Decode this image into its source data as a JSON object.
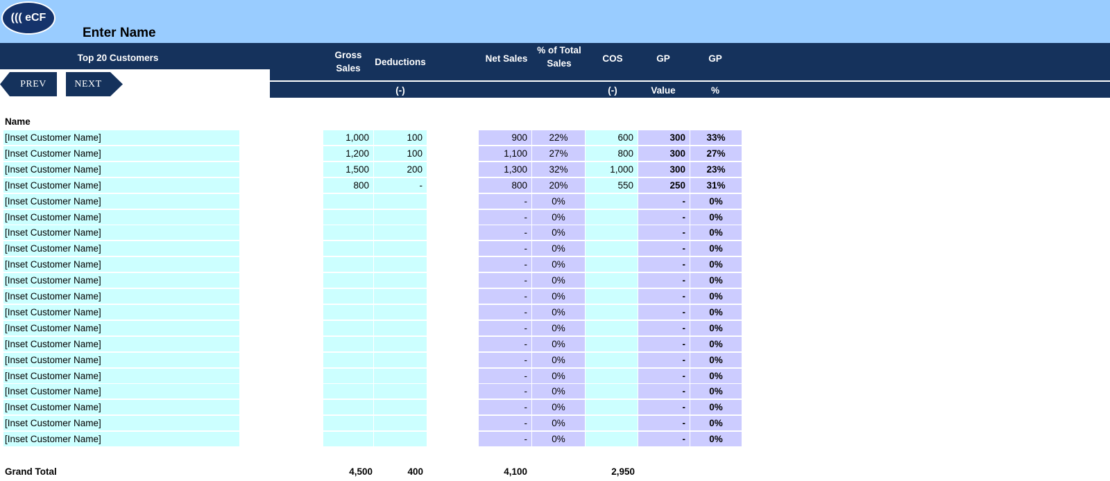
{
  "header": {
    "logo_text": "((( eCF",
    "title": "Enter Name",
    "columns": {
      "customers": "Top 20 Customers",
      "gross_sales": [
        "Gross",
        "Sales"
      ],
      "deductions": "Deductions",
      "net_sales": "Net Sales",
      "pct_total_sales": [
        "% of Total",
        "Sales"
      ],
      "cos": "COS",
      "gp_value": "GP",
      "gp_pct": "GP"
    },
    "subheaders": {
      "deductions": "(-)",
      "cos": "(-)",
      "gp_value": "Value",
      "gp_pct": "%"
    }
  },
  "nav": {
    "prev_label": "PREV",
    "next_label": "NEXT"
  },
  "table": {
    "name_header": "Name",
    "rows": [
      {
        "name": "[Inset Customer Name]",
        "gross": "1,000",
        "deductions": "100",
        "net": "900",
        "pct": "22%",
        "cos": "600",
        "gp": "300",
        "gp_pct": "33%"
      },
      {
        "name": "[Inset Customer Name]",
        "gross": "1,200",
        "deductions": "100",
        "net": "1,100",
        "pct": "27%",
        "cos": "800",
        "gp": "300",
        "gp_pct": "27%"
      },
      {
        "name": "[Inset Customer Name]",
        "gross": "1,500",
        "deductions": "200",
        "net": "1,300",
        "pct": "32%",
        "cos": "1,000",
        "gp": "300",
        "gp_pct": "23%"
      },
      {
        "name": "[Inset Customer Name]",
        "gross": "800",
        "deductions": "-",
        "net": "800",
        "pct": "20%",
        "cos": "550",
        "gp": "250",
        "gp_pct": "31%"
      },
      {
        "name": "[Inset Customer Name]",
        "gross": "",
        "deductions": "",
        "net": "-",
        "pct": "0%",
        "cos": "",
        "gp": "-",
        "gp_pct": "0%"
      },
      {
        "name": "[Inset Customer Name]",
        "gross": "",
        "deductions": "",
        "net": "-",
        "pct": "0%",
        "cos": "",
        "gp": "-",
        "gp_pct": "0%"
      },
      {
        "name": "[Inset Customer Name]",
        "gross": "",
        "deductions": "",
        "net": "-",
        "pct": "0%",
        "cos": "",
        "gp": "-",
        "gp_pct": "0%"
      },
      {
        "name": "[Inset Customer Name]",
        "gross": "",
        "deductions": "",
        "net": "-",
        "pct": "0%",
        "cos": "",
        "gp": "-",
        "gp_pct": "0%"
      },
      {
        "name": "[Inset Customer Name]",
        "gross": "",
        "deductions": "",
        "net": "-",
        "pct": "0%",
        "cos": "",
        "gp": "-",
        "gp_pct": "0%"
      },
      {
        "name": "[Inset Customer Name]",
        "gross": "",
        "deductions": "",
        "net": "-",
        "pct": "0%",
        "cos": "",
        "gp": "-",
        "gp_pct": "0%"
      },
      {
        "name": "[Inset Customer Name]",
        "gross": "",
        "deductions": "",
        "net": "-",
        "pct": "0%",
        "cos": "",
        "gp": "-",
        "gp_pct": "0%"
      },
      {
        "name": "[Inset Customer Name]",
        "gross": "",
        "deductions": "",
        "net": "-",
        "pct": "0%",
        "cos": "",
        "gp": "-",
        "gp_pct": "0%"
      },
      {
        "name": "[Inset Customer Name]",
        "gross": "",
        "deductions": "",
        "net": "-",
        "pct": "0%",
        "cos": "",
        "gp": "-",
        "gp_pct": "0%"
      },
      {
        "name": "[Inset Customer Name]",
        "gross": "",
        "deductions": "",
        "net": "-",
        "pct": "0%",
        "cos": "",
        "gp": "-",
        "gp_pct": "0%"
      },
      {
        "name": "[Inset Customer Name]",
        "gross": "",
        "deductions": "",
        "net": "-",
        "pct": "0%",
        "cos": "",
        "gp": "-",
        "gp_pct": "0%"
      },
      {
        "name": "[Inset Customer Name]",
        "gross": "",
        "deductions": "",
        "net": "-",
        "pct": "0%",
        "cos": "",
        "gp": "-",
        "gp_pct": "0%"
      },
      {
        "name": "[Inset Customer Name]",
        "gross": "",
        "deductions": "",
        "net": "-",
        "pct": "0%",
        "cos": "",
        "gp": "-",
        "gp_pct": "0%"
      },
      {
        "name": "[Inset Customer Name]",
        "gross": "",
        "deductions": "",
        "net": "-",
        "pct": "0%",
        "cos": "",
        "gp": "-",
        "gp_pct": "0%"
      },
      {
        "name": "[Inset Customer Name]",
        "gross": "",
        "deductions": "",
        "net": "-",
        "pct": "0%",
        "cos": "",
        "gp": "-",
        "gp_pct": "0%"
      },
      {
        "name": "[Inset Customer Name]",
        "gross": "",
        "deductions": "",
        "net": "-",
        "pct": "0%",
        "cos": "",
        "gp": "-",
        "gp_pct": "0%"
      }
    ],
    "grand_total": {
      "label": "Grand Total",
      "gross": "4,500",
      "deductions": "400",
      "net": "4,100",
      "cos": "2,950"
    }
  },
  "colors": {
    "header_navy": "#15325c",
    "banner_blue": "#99ccff",
    "input_cyan": "#ccffff",
    "calc_lavender": "#ccccff"
  }
}
